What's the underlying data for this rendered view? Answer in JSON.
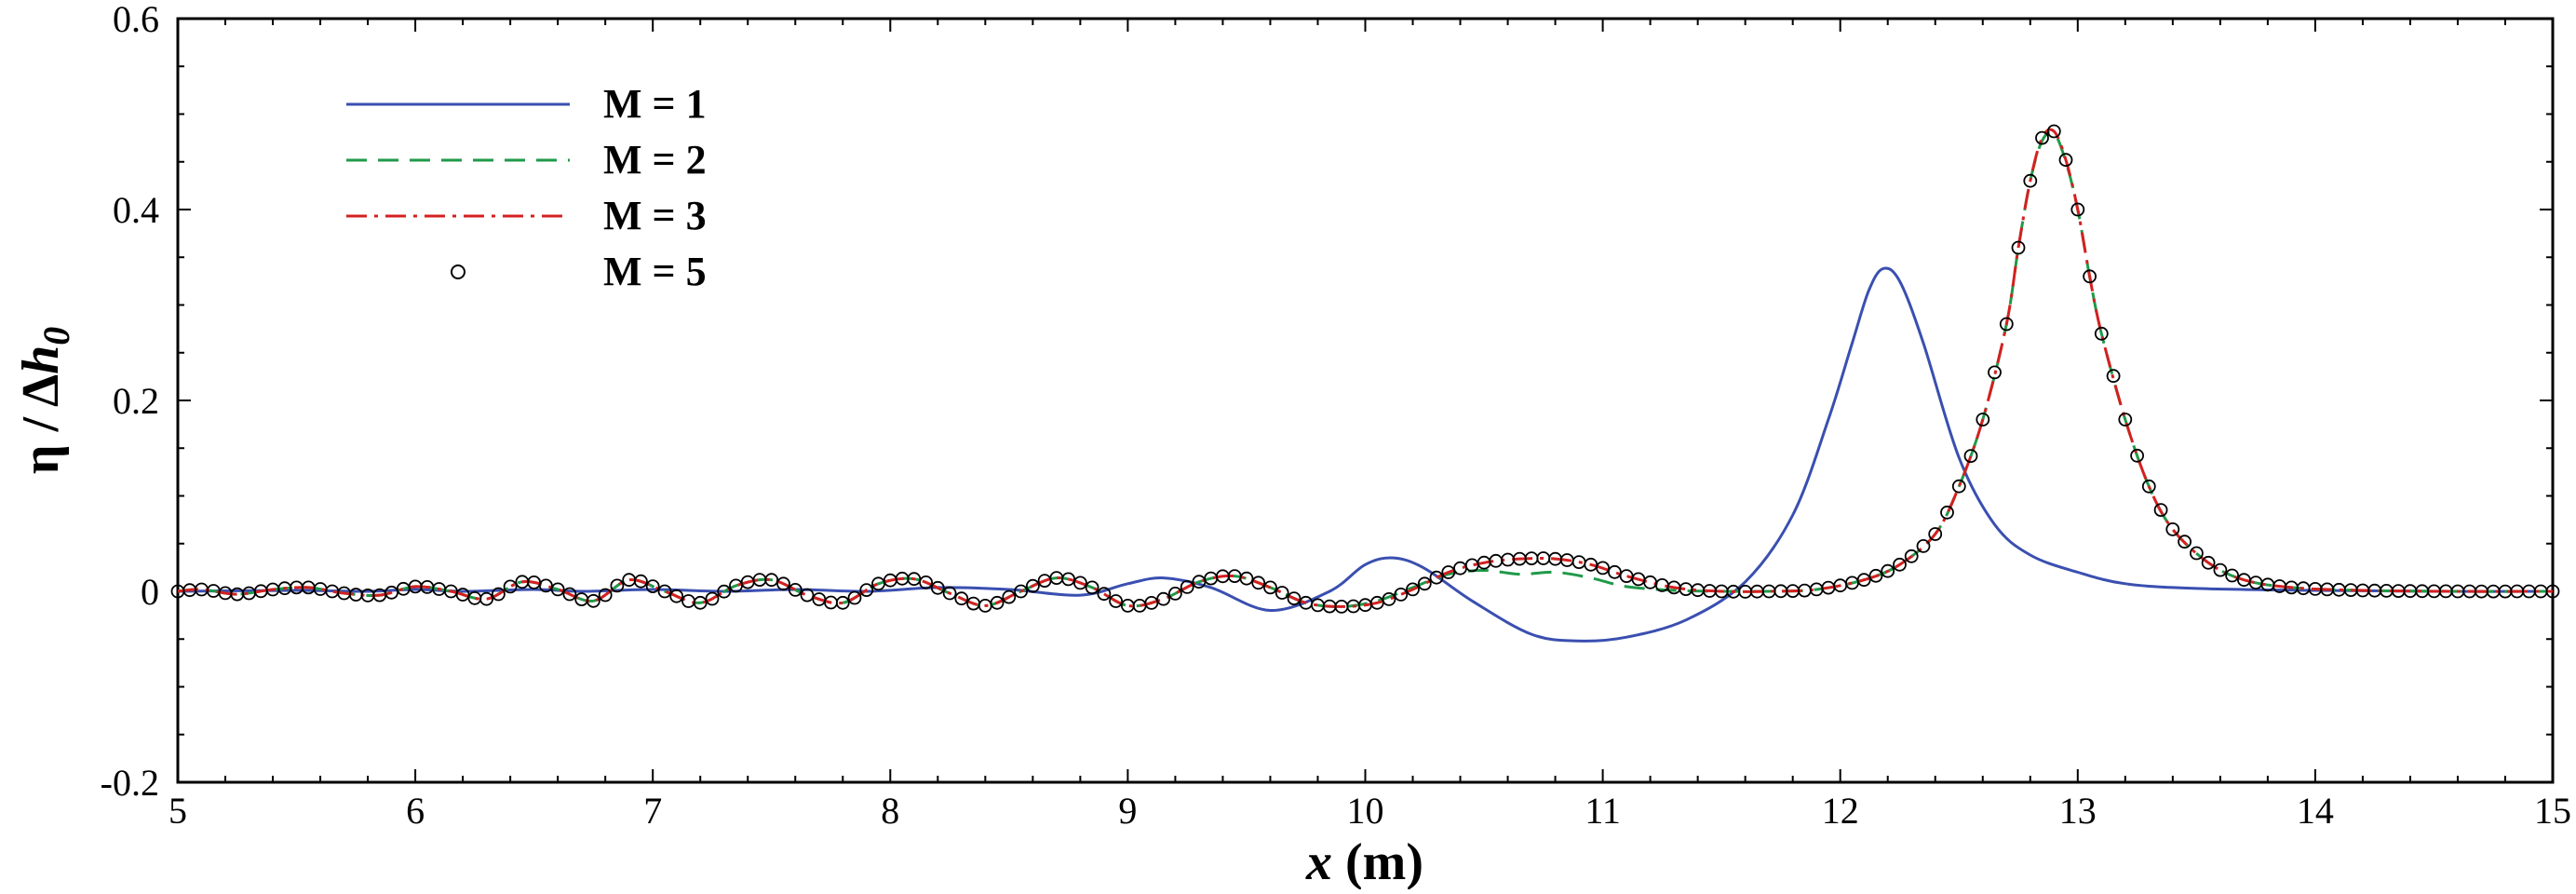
{
  "chart_data": {
    "type": "line",
    "title": "",
    "xlabel": {
      "var": "x",
      "unit": " (m)"
    },
    "ylabel": {
      "prefix": "η / Δ",
      "var": "h",
      "sub": "0"
    },
    "xlim": [
      5,
      15
    ],
    "ylim": [
      -0.2,
      0.6
    ],
    "grid": false,
    "legend_position": "top-left",
    "x_ticks": [
      "5",
      "6",
      "7",
      "8",
      "9",
      "10",
      "11",
      "12",
      "13",
      "14",
      "15"
    ],
    "y_ticks": [
      "-0.2",
      "0",
      "0.2",
      "0.4",
      "0.6"
    ],
    "series": [
      {
        "name": "M = 1",
        "style": "solid",
        "color": "#3a4fb0",
        "x": [
          5.0,
          5.5,
          5.8,
          6.0,
          6.2,
          6.5,
          6.7,
          7.0,
          7.3,
          7.6,
          7.9,
          8.2,
          8.5,
          8.8,
          9.0,
          9.15,
          9.35,
          9.6,
          9.85,
          10.0,
          10.12,
          10.25,
          10.45,
          10.7,
          10.9,
          11.1,
          11.35,
          11.6,
          11.8,
          11.95,
          12.05,
          12.12,
          12.18,
          12.25,
          12.35,
          12.5,
          12.65,
          12.8,
          13.0,
          13.2,
          13.5,
          14.0,
          14.5,
          15.0
        ],
        "y": [
          0.0,
          0.001,
          0.0,
          0.002,
          0.0,
          0.002,
          0.0,
          0.002,
          0.0,
          0.002,
          0.0,
          0.004,
          0.002,
          -0.004,
          0.008,
          0.014,
          0.004,
          -0.02,
          0.0,
          0.028,
          0.035,
          0.024,
          -0.01,
          -0.045,
          -0.052,
          -0.048,
          -0.03,
          0.01,
          0.08,
          0.18,
          0.26,
          0.315,
          0.338,
          0.325,
          0.26,
          0.14,
          0.07,
          0.038,
          0.02,
          0.008,
          0.003,
          0.001,
          0.0,
          0.0
        ]
      },
      {
        "name": "M = 2",
        "style": "dashed",
        "color": "#1f9a4a",
        "x": [
          5.0,
          5.1,
          5.25,
          5.4,
          5.55,
          5.7,
          5.85,
          6.0,
          6.15,
          6.3,
          6.45,
          6.6,
          6.75,
          6.9,
          7.05,
          7.2,
          7.35,
          7.5,
          7.65,
          7.8,
          7.95,
          8.1,
          8.25,
          8.4,
          8.55,
          8.7,
          8.85,
          9.0,
          9.15,
          9.3,
          9.45,
          9.6,
          9.75,
          9.9,
          10.05,
          10.2,
          10.35,
          10.5,
          10.65,
          10.8,
          10.95,
          11.1,
          11.3,
          11.5,
          11.7,
          11.9,
          12.1,
          12.25,
          12.4,
          12.5,
          12.6,
          12.7,
          12.75,
          12.8,
          12.85,
          12.9,
          12.95,
          13.0,
          13.05,
          13.1,
          13.2,
          13.3,
          13.4,
          13.55,
          13.7,
          13.9,
          14.2,
          14.6,
          15.0
        ],
        "y": [
          0.0,
          0.002,
          -0.003,
          0.002,
          0.004,
          -0.002,
          -0.004,
          0.005,
          0.0,
          -0.008,
          0.01,
          0.002,
          -0.01,
          0.012,
          0.0,
          -0.012,
          0.006,
          0.012,
          -0.004,
          -0.012,
          0.008,
          0.013,
          -0.002,
          -0.015,
          0.0,
          0.014,
          0.004,
          -0.015,
          -0.008,
          0.01,
          0.016,
          0.004,
          -0.012,
          -0.016,
          -0.01,
          0.004,
          0.018,
          0.022,
          0.018,
          0.02,
          0.014,
          0.005,
          0.001,
          0.0,
          0.0,
          0.002,
          0.012,
          0.028,
          0.06,
          0.11,
          0.18,
          0.28,
          0.36,
          0.43,
          0.472,
          0.48,
          0.45,
          0.4,
          0.33,
          0.27,
          0.18,
          0.11,
          0.065,
          0.03,
          0.012,
          0.004,
          0.001,
          0.0,
          0.0
        ]
      },
      {
        "name": "M = 3",
        "style": "dashdot",
        "color": "#d42020",
        "x": [
          5.0,
          5.1,
          5.25,
          5.4,
          5.55,
          5.7,
          5.85,
          6.0,
          6.15,
          6.3,
          6.45,
          6.6,
          6.75,
          6.9,
          7.05,
          7.2,
          7.35,
          7.5,
          7.65,
          7.8,
          7.95,
          8.1,
          8.25,
          8.4,
          8.55,
          8.7,
          8.85,
          9.0,
          9.15,
          9.3,
          9.45,
          9.6,
          9.75,
          9.9,
          10.05,
          10.2,
          10.35,
          10.5,
          10.65,
          10.8,
          10.95,
          11.1,
          11.3,
          11.5,
          11.7,
          11.9,
          12.1,
          12.25,
          12.4,
          12.5,
          12.6,
          12.7,
          12.75,
          12.8,
          12.85,
          12.9,
          12.95,
          13.0,
          13.05,
          13.1,
          13.2,
          13.3,
          13.4,
          13.55,
          13.7,
          13.9,
          14.2,
          14.6,
          15.0
        ],
        "y": [
          0.0,
          0.002,
          -0.003,
          0.002,
          0.004,
          -0.002,
          -0.004,
          0.005,
          0.0,
          -0.008,
          0.01,
          0.002,
          -0.01,
          0.012,
          0.0,
          -0.012,
          0.006,
          0.012,
          -0.004,
          -0.012,
          0.008,
          0.013,
          -0.002,
          -0.015,
          0.0,
          0.014,
          0.004,
          -0.015,
          -0.008,
          0.01,
          0.016,
          0.004,
          -0.012,
          -0.016,
          -0.012,
          0.002,
          0.02,
          0.03,
          0.034,
          0.034,
          0.028,
          0.016,
          0.004,
          0.0,
          0.0,
          0.002,
          0.012,
          0.028,
          0.06,
          0.11,
          0.18,
          0.28,
          0.36,
          0.43,
          0.475,
          0.482,
          0.452,
          0.4,
          0.33,
          0.27,
          0.18,
          0.11,
          0.065,
          0.03,
          0.012,
          0.004,
          0.001,
          0.0,
          0.0
        ]
      },
      {
        "name": "M = 5",
        "style": "markers",
        "color": "#000000",
        "note_sampling_step": 0.05
      }
    ]
  }
}
